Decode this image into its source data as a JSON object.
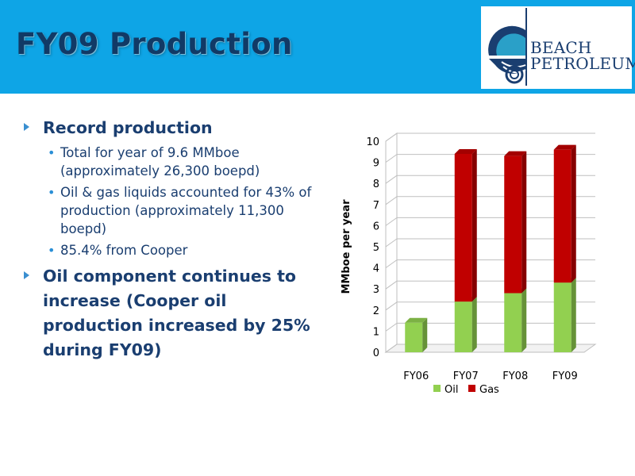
{
  "slide": {
    "title": "FY09 Production",
    "logo": {
      "line1": "BEACH",
      "line2": "PETROLEUM"
    },
    "colors": {
      "header_bg": "#0ea5e6",
      "title": "#113a66",
      "text": "#1a3e70",
      "accent": "#3a8fd0"
    }
  },
  "bullets": [
    {
      "text": "Record production",
      "sub": [
        "Total for year of 9.6 MMboe (approximately 26,300 boepd)",
        "Oil & gas liquids accounted for 43% of production (approximately 11,300 boepd)",
        "85.4% from Cooper"
      ]
    },
    {
      "text": "Oil component continues to increase (Cooper oil production increased by 25% during FY09)",
      "sub": []
    }
  ],
  "chart_data": {
    "type": "bar",
    "stacked": true,
    "categories": [
      "FY06",
      "FY07",
      "FY08",
      "FY09"
    ],
    "series": [
      {
        "name": "Oil",
        "values": [
          1.4,
          2.4,
          2.8,
          3.3
        ],
        "color": "#92d050"
      },
      {
        "name": "Gas",
        "values": [
          0.0,
          7.0,
          6.5,
          6.3
        ],
        "color": "#c00000"
      }
    ],
    "title": "",
    "xlabel": "",
    "ylabel": "MMboe per year",
    "ylim": [
      0,
      10
    ],
    "yticks": [
      "0",
      "1",
      "2",
      "3",
      "4",
      "5",
      "6",
      "7",
      "8",
      "9",
      "10"
    ],
    "grid": true,
    "legend": "bottom"
  }
}
